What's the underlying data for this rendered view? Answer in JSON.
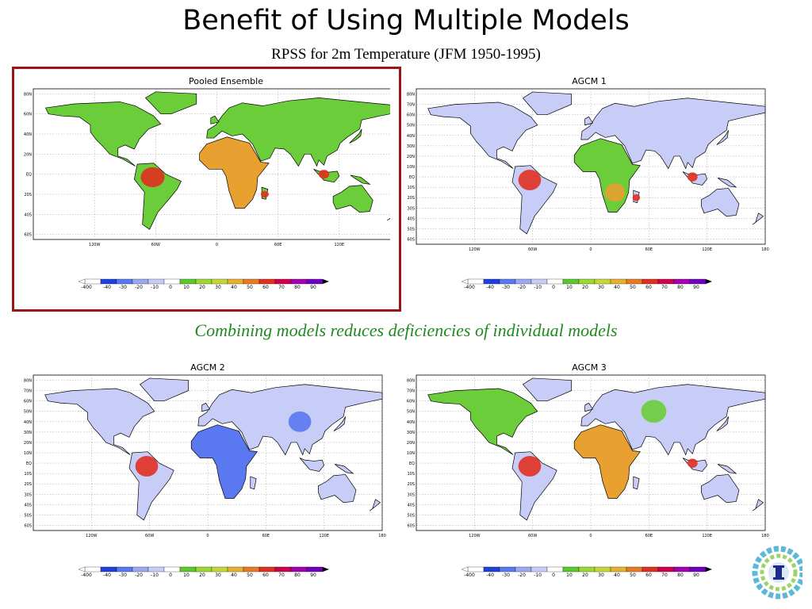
{
  "slide": {
    "title": "Benefit of Using Multiple Models",
    "subtitle": "RPSS for 2m Temperature (JFM 1950-1995)",
    "caption": "Combining models reduces deficiencies of individual models"
  },
  "panels": [
    {
      "title": "Pooled Ensemble",
      "highlighted": true
    },
    {
      "title": "AGCM 1",
      "highlighted": false
    },
    {
      "title": "AGCM 2",
      "highlighted": false
    },
    {
      "title": "AGCM 3",
      "highlighted": false
    }
  ],
  "axes": {
    "lat_ticks_pooled": [
      "80N",
      "60N",
      "40N",
      "20N",
      "EQ",
      "20S",
      "40S",
      "60S"
    ],
    "lat_ticks": [
      "80N",
      "70N",
      "60N",
      "50N",
      "40N",
      "30N",
      "20N",
      "10N",
      "EQ",
      "10S",
      "20S",
      "30S",
      "40S",
      "50S",
      "60S"
    ],
    "lon_ticks": [
      "120W",
      "60W",
      "0",
      "60E",
      "120E",
      "180"
    ]
  },
  "colorbar": {
    "labels": [
      "-400",
      "-40",
      "-30",
      "-20",
      "-10",
      "0",
      "10",
      "20",
      "30",
      "40",
      "50",
      "60",
      "70",
      "80",
      "90"
    ],
    "colors": [
      "#ffffff",
      "#1f3fe0",
      "#5a78f0",
      "#9aa9f0",
      "#c8cdf7",
      "#ffffff",
      "#5cc82e",
      "#9bd831",
      "#c6d838",
      "#e8b030",
      "#e87a26",
      "#e03020",
      "#d00050",
      "#a000b0",
      "#7000c0"
    ]
  },
  "map_colors": {
    "ocean": "#ffffff",
    "land_low": "#c8cdf7",
    "skill_pos": "#6ccd3a",
    "skill_high": "#e8a030",
    "skill_top": "#e03020",
    "skill_neg": "#5a78f0"
  },
  "logo": {
    "name": "institution-logo"
  }
}
